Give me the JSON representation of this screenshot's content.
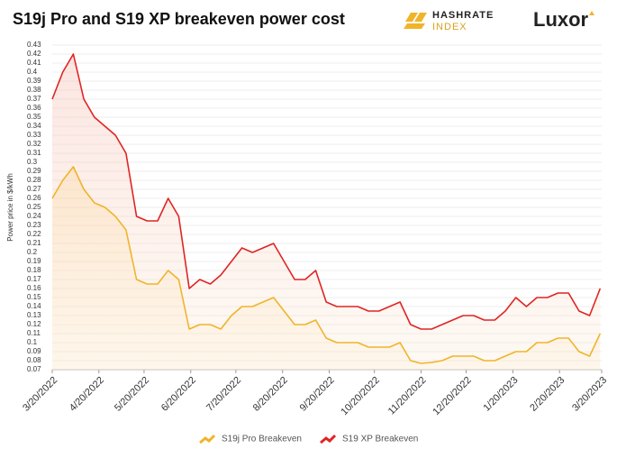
{
  "chart_data": {
    "type": "line",
    "title": "S19j Pro and S19 XP breakeven power cost",
    "brand": {
      "hashrate": "HASHRATE",
      "index": "INDEX",
      "luxor": "Luxor"
    },
    "y_label": "Power price in $/kWh",
    "x": [
      "3/20/2022",
      "3/27/2022",
      "4/3/2022",
      "4/10/2022",
      "4/17/2022",
      "4/24/2022",
      "5/1/2022",
      "5/8/2022",
      "5/15/2022",
      "5/22/2022",
      "5/29/2022",
      "6/5/2022",
      "6/12/2022",
      "6/19/2022",
      "6/26/2022",
      "7/3/2022",
      "7/10/2022",
      "7/17/2022",
      "7/24/2022",
      "7/31/2022",
      "8/7/2022",
      "8/14/2022",
      "8/21/2022",
      "8/28/2022",
      "9/4/2022",
      "9/11/2022",
      "9/18/2022",
      "9/25/2022",
      "10/2/2022",
      "10/9/2022",
      "10/16/2022",
      "10/23/2022",
      "10/30/2022",
      "11/6/2022",
      "11/13/2022",
      "11/20/2022",
      "11/27/2022",
      "12/4/2022",
      "12/11/2022",
      "12/18/2022",
      "12/25/2022",
      "1/1/2023",
      "1/8/2023",
      "1/15/2023",
      "1/22/2023",
      "1/29/2023",
      "2/5/2023",
      "2/12/2023",
      "2/19/2023",
      "2/26/2023",
      "3/5/2023",
      "3/12/2023",
      "3/19/2023"
    ],
    "series": [
      {
        "name": "S19j Pro Breakeven",
        "color": "#f0b429",
        "values": [
          0.26,
          0.28,
          0.295,
          0.27,
          0.255,
          0.25,
          0.24,
          0.225,
          0.17,
          0.165,
          0.165,
          0.18,
          0.17,
          0.115,
          0.12,
          0.12,
          0.115,
          0.13,
          0.14,
          0.14,
          0.145,
          0.15,
          0.135,
          0.12,
          0.12,
          0.125,
          0.105,
          0.1,
          0.1,
          0.1,
          0.095,
          0.095,
          0.095,
          0.1,
          0.08,
          0.077,
          0.078,
          0.08,
          0.085,
          0.085,
          0.085,
          0.08,
          0.08,
          0.085,
          0.09,
          0.09,
          0.1,
          0.1,
          0.105,
          0.105,
          0.09,
          0.085,
          0.11
        ]
      },
      {
        "name": "S19 XP Breakeven",
        "color": "#e02424",
        "values": [
          0.37,
          0.4,
          0.42,
          0.37,
          0.35,
          0.34,
          0.33,
          0.31,
          0.24,
          0.235,
          0.235,
          0.26,
          0.24,
          0.16,
          0.17,
          0.165,
          0.175,
          0.19,
          0.205,
          0.2,
          0.205,
          0.21,
          0.19,
          0.17,
          0.17,
          0.18,
          0.145,
          0.14,
          0.14,
          0.14,
          0.135,
          0.135,
          0.14,
          0.145,
          0.12,
          0.115,
          0.115,
          0.12,
          0.125,
          0.13,
          0.13,
          0.125,
          0.125,
          0.135,
          0.15,
          0.14,
          0.15,
          0.15,
          0.155,
          0.155,
          0.135,
          0.13,
          0.16
        ]
      }
    ],
    "xticks": [
      "3/20/2022",
      "4/20/2022",
      "5/20/2022",
      "6/20/2022",
      "7/20/2022",
      "8/20/2022",
      "9/20/2022",
      "10/20/2022",
      "11/20/2022",
      "12/20/2022",
      "1/20/2023",
      "2/20/2023",
      "3/20/2023"
    ],
    "ylim": [
      0.07,
      0.43
    ],
    "yticks": [
      0.07,
      0.08,
      0.09,
      0.1,
      0.11,
      0.12,
      0.13,
      0.14,
      0.15,
      0.16,
      0.17,
      0.18,
      0.19,
      0.2,
      0.21,
      0.22,
      0.23,
      0.24,
      0.25,
      0.26,
      0.27,
      0.28,
      0.29,
      0.3,
      0.31,
      0.32,
      0.33,
      0.34,
      0.35,
      0.36,
      0.37,
      0.38,
      0.39,
      0.4,
      0.41,
      0.42,
      0.43
    ],
    "grid": true,
    "legend": "bottom"
  }
}
